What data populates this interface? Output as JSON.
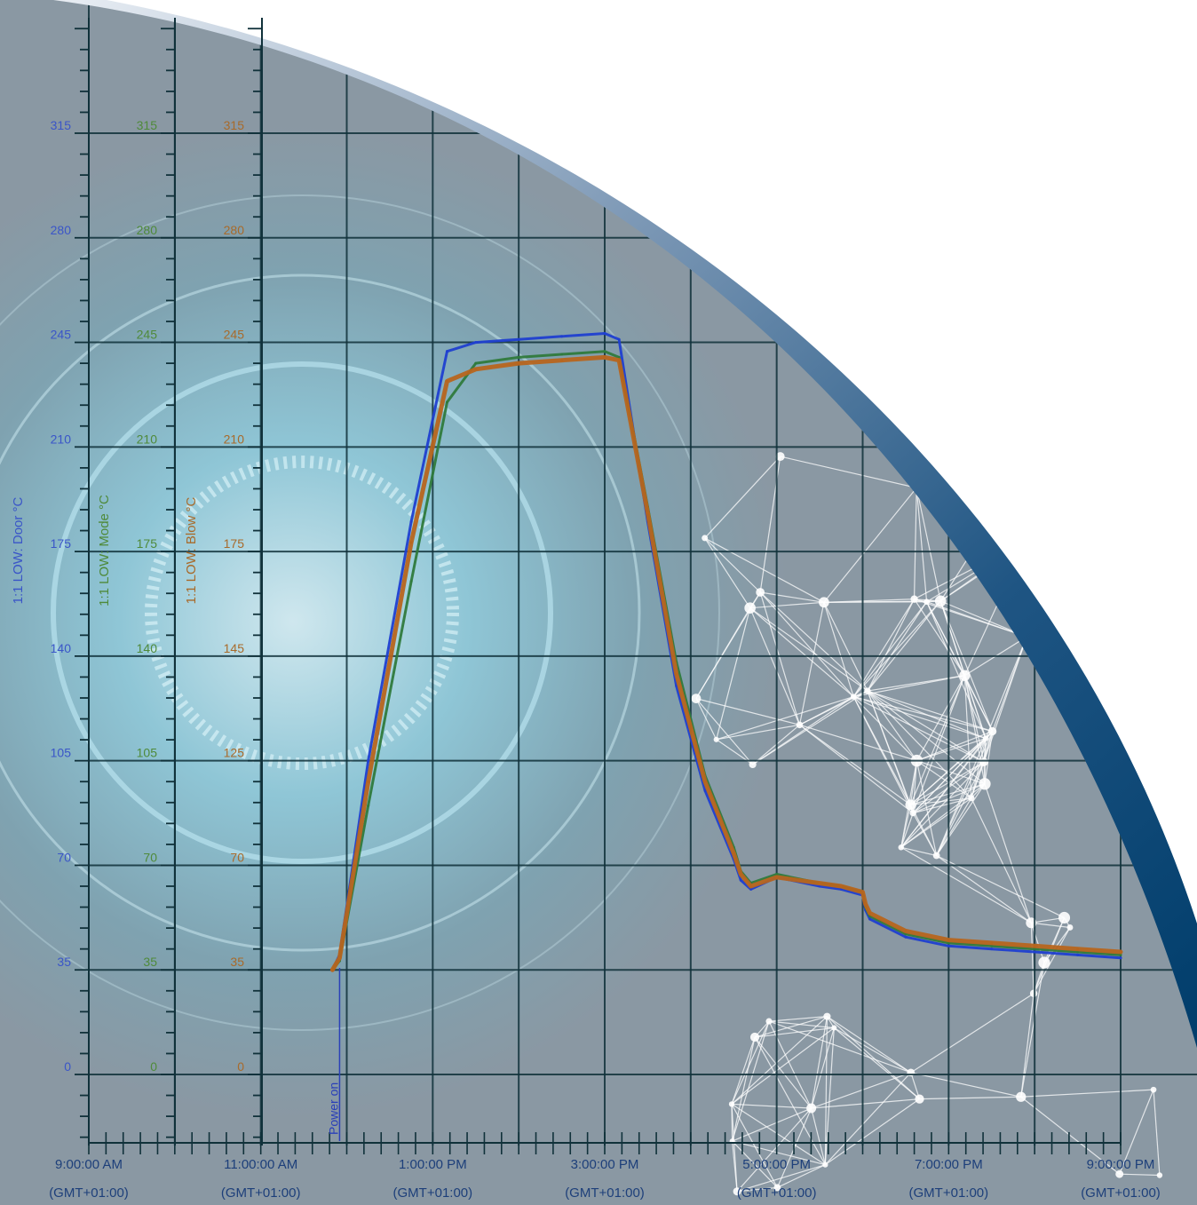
{
  "chart_data": {
    "type": "line",
    "y_axes": [
      {
        "label": "1:1 LOW: Door °C",
        "ticks": [
          "0",
          "35",
          "70",
          "105",
          "140",
          "175",
          "210",
          "245",
          "280",
          "315"
        ],
        "color": "#3a55c8"
      },
      {
        "label": "1:1 LOW: Mode °C",
        "ticks": [
          "0",
          "35",
          "70",
          "105",
          "140",
          "175",
          "210",
          "245",
          "280",
          "315"
        ],
        "color": "#4f8a3a"
      },
      {
        "label": "1:1 LOW: Blow °C",
        "ticks": [
          "0",
          "35",
          "70",
          "125",
          "145",
          "175",
          "210",
          "245",
          "280",
          "315"
        ],
        "color": "#a86a2a"
      }
    ],
    "ylim": [
      0,
      315
    ],
    "x_tick_labels": [
      {
        "time": "9:00:00 AM",
        "tz": "(GMT+01:00)"
      },
      {
        "time": "11:00:00 AM",
        "tz": "(GMT+01:00)"
      },
      {
        "time": "1:00:00 PM",
        "tz": "(GMT+01:00)"
      },
      {
        "time": "3:00:00 PM",
        "tz": "(GMT+01:00)"
      },
      {
        "time": "5:00:00 PM",
        "tz": "(GMT+01:00)"
      },
      {
        "time": "7:00:00 PM",
        "tz": "(GMT+01:00)"
      },
      {
        "time": "9:00:00 PM",
        "tz": "(GMT+01:00)"
      }
    ],
    "xlim": [
      "9:00:00 AM",
      "9:00:00 PM"
    ],
    "grid": true,
    "event_marker": {
      "label": "Power on",
      "time": "11:55 AM"
    },
    "series": [
      {
        "name": "1:1 LOW: Door °C",
        "color": "#1f3fd0",
        "x": [
          "11:50 AM",
          "11:55 AM",
          "12:15 PM",
          "12:45 PM",
          "1:10 PM",
          "1:30 PM",
          "2:00 PM",
          "2:30 PM",
          "3:00 PM",
          "3:10 PM",
          "3:30 PM",
          "3:50 PM",
          "4:10 PM",
          "4:30 PM",
          "4:35 PM",
          "4:42 PM",
          "5:00 PM",
          "5:30 PM",
          "5:45 PM",
          "6:00 PM",
          "6:02 PM",
          "6:05 PM",
          "6:30 PM",
          "7:00 PM",
          "7:30 PM",
          "8:00 PM",
          "8:30 PM",
          "9:00 PM"
        ],
        "y": [
          35,
          40,
          105,
          185,
          242,
          245,
          246,
          247,
          248,
          246,
          185,
          130,
          95,
          72,
          65,
          62,
          66,
          63,
          62,
          60,
          55,
          52,
          46,
          43,
          42,
          41,
          40,
          39
        ]
      },
      {
        "name": "1:1 LOW: Mode °C",
        "color": "#2f7a3c",
        "x": [
          "11:50 AM",
          "11:55 AM",
          "12:15 PM",
          "12:45 PM",
          "1:10 PM",
          "1:30 PM",
          "2:00 PM",
          "2:30 PM",
          "3:00 PM",
          "3:10 PM",
          "3:30 PM",
          "3:50 PM",
          "4:10 PM",
          "4:30 PM",
          "4:35 PM",
          "4:42 PM",
          "5:00 PM",
          "5:30 PM",
          "5:45 PM",
          "6:00 PM",
          "6:02 PM",
          "6:05 PM",
          "6:30 PM",
          "7:00 PM",
          "7:30 PM",
          "8:00 PM",
          "8:30 PM",
          "9:00 PM"
        ],
        "y": [
          35,
          38,
          90,
          165,
          225,
          238,
          240,
          241,
          242,
          240,
          190,
          138,
          100,
          76,
          68,
          64,
          67,
          64,
          63,
          61,
          56,
          53,
          47,
          44,
          43,
          42,
          41,
          40
        ]
      },
      {
        "name": "1:1 LOW: Blow °C",
        "color": "#b7651e",
        "x": [
          "11:50 AM",
          "11:55 AM",
          "12:15 PM",
          "12:45 PM",
          "1:10 PM",
          "1:30 PM",
          "2:00 PM",
          "2:30 PM",
          "3:00 PM",
          "3:10 PM",
          "3:30 PM",
          "3:50 PM",
          "4:10 PM",
          "4:30 PM",
          "4:35 PM",
          "4:42 PM",
          "5:00 PM",
          "5:30 PM",
          "5:45 PM",
          "6:00 PM",
          "6:02 PM",
          "6:05 PM",
          "6:30 PM",
          "7:00 PM",
          "7:30 PM",
          "8:00 PM",
          "8:30 PM",
          "9:00 PM"
        ],
        "y": [
          35,
          39,
          98,
          178,
          232,
          236,
          238,
          239,
          240,
          239,
          188,
          134,
          98,
          74,
          67,
          63,
          66,
          64,
          63,
          61,
          57,
          54,
          48,
          45,
          44,
          43,
          42,
          41
        ]
      }
    ]
  }
}
